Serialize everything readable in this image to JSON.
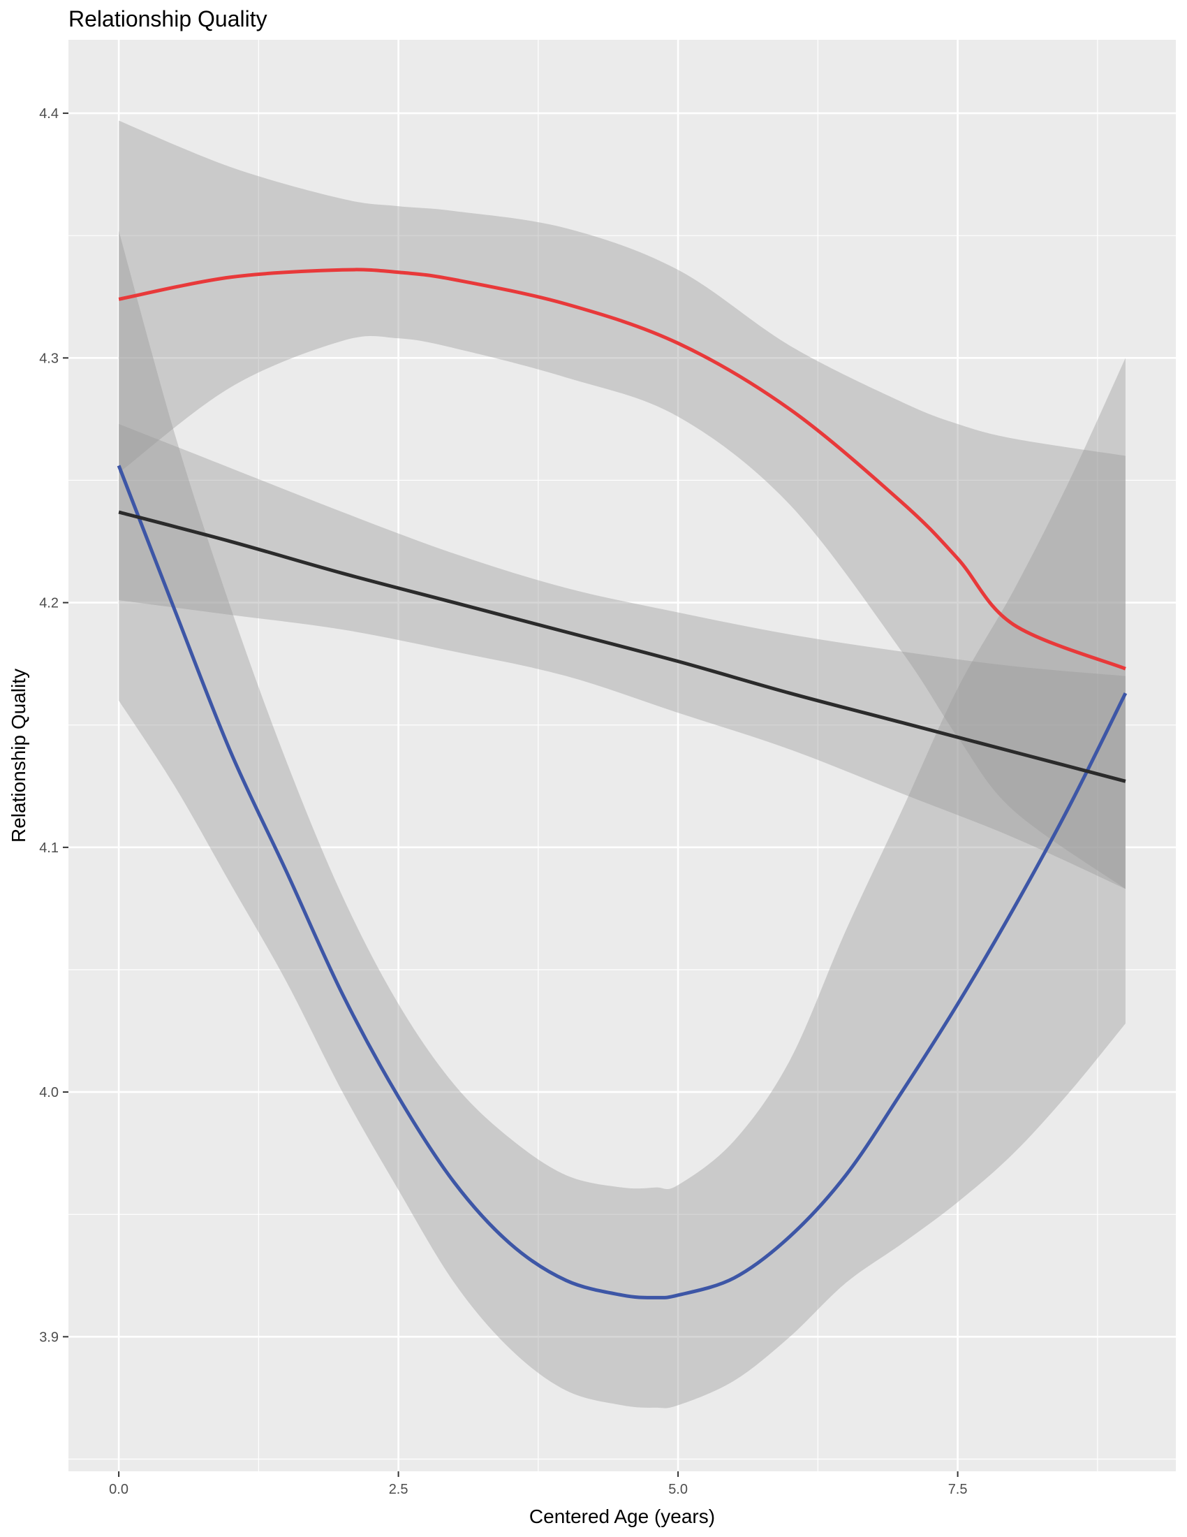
{
  "chart_data": {
    "type": "line",
    "title": "Relationship Quality",
    "xlabel": "Centered Age (years)",
    "ylabel": "Relationship Quality",
    "xlim": [
      -0.45,
      9.45
    ],
    "ylim": [
      3.845,
      4.43
    ],
    "x_ticks": [
      0,
      2.5,
      5,
      7.5
    ],
    "x_tick_labels": [
      "0.0",
      "2.5",
      "5.0",
      "7.5"
    ],
    "y_ticks": [
      3.9,
      4.0,
      4.1,
      4.2,
      4.3,
      4.4
    ],
    "y_tick_labels": [
      "3.9",
      "4.0",
      "4.1",
      "4.2",
      "4.3",
      "4.4"
    ],
    "grid": true,
    "legend": "none",
    "background": "#ebebeb",
    "ribbon_color": "#999999",
    "series": [
      {
        "color": "#e8393a",
        "x": [
          0,
          1,
          2,
          2.5,
          3,
          4,
          5,
          6,
          7,
          7.5,
          8,
          9
        ],
        "y": [
          4.324,
          4.333,
          4.336,
          4.335,
          4.332,
          4.322,
          4.306,
          4.279,
          4.241,
          4.218,
          4.191,
          4.173
        ],
        "lower": [
          4.253,
          4.288,
          4.307,
          4.308,
          4.304,
          4.292,
          4.276,
          4.24,
          4.18,
          4.145,
          4.115,
          4.083
        ],
        "upper": [
          4.397,
          4.378,
          4.365,
          4.362,
          4.36,
          4.353,
          4.336,
          4.305,
          4.282,
          4.273,
          4.267,
          4.26
        ]
      },
      {
        "color": "#3d56a6",
        "x": [
          0,
          0.5,
          1,
          1.5,
          2,
          2.5,
          3,
          3.5,
          4,
          4.5,
          4.8,
          5,
          5.5,
          6,
          6.5,
          7,
          7.5,
          8,
          8.5,
          9
        ],
        "y": [
          4.256,
          4.197,
          4.139,
          4.09,
          4.04,
          3.998,
          3.963,
          3.938,
          3.923,
          3.917,
          3.916,
          3.917,
          3.924,
          3.941,
          3.966,
          4.0,
          4.036,
          4.075,
          4.117,
          4.163
        ],
        "lower": [
          4.16,
          4.125,
          4.085,
          4.045,
          4.0,
          3.96,
          3.922,
          3.895,
          3.878,
          3.872,
          3.871,
          3.872,
          3.882,
          3.9,
          3.922,
          3.938,
          3.955,
          3.975,
          4.0,
          4.028
        ],
        "upper": [
          4.352,
          4.269,
          4.198,
          4.135,
          4.08,
          4.036,
          4.003,
          3.981,
          3.966,
          3.961,
          3.961,
          3.962,
          3.98,
          4.013,
          4.066,
          4.115,
          4.165,
          4.205,
          4.25,
          4.3
        ]
      },
      {
        "color": "#2b2b2b",
        "x": [
          0,
          1,
          2,
          3,
          4,
          5,
          6,
          7,
          8,
          9
        ],
        "y": [
          4.237,
          4.225,
          4.212,
          4.2,
          4.188,
          4.176,
          4.163,
          4.151,
          4.139,
          4.127
        ],
        "lower": [
          4.201,
          4.195,
          4.189,
          4.18,
          4.17,
          4.155,
          4.14,
          4.122,
          4.104,
          4.083
        ],
        "upper": [
          4.273,
          4.255,
          4.237,
          4.22,
          4.206,
          4.196,
          4.187,
          4.18,
          4.174,
          4.17
        ]
      }
    ]
  }
}
